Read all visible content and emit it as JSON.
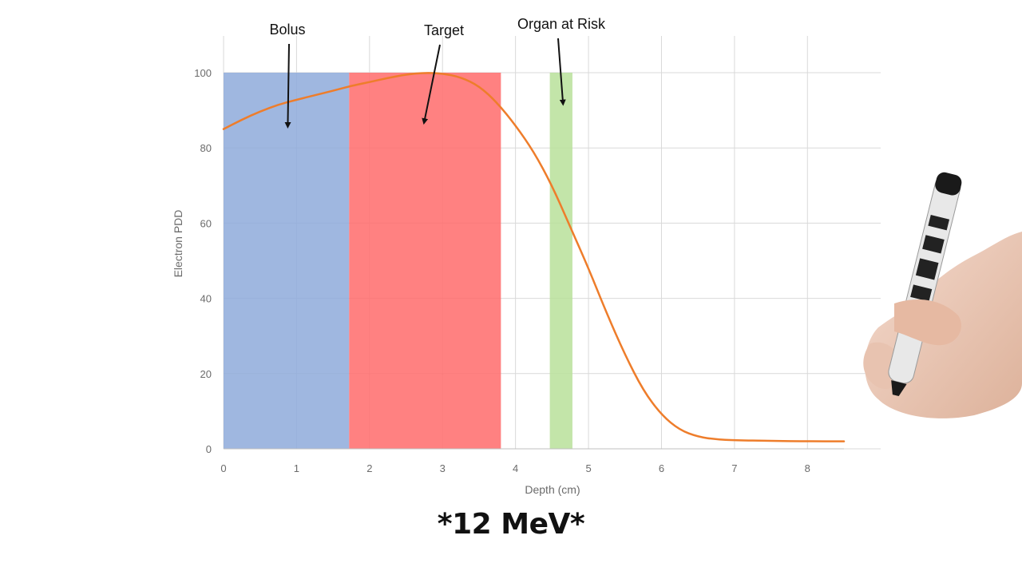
{
  "caption": "*12 MeV*",
  "chart_data": {
    "type": "line",
    "title": "",
    "xlabel": "Depth (cm)",
    "ylabel": "Electron PDD",
    "xlim": [
      0,
      8.5
    ],
    "ylim": [
      0,
      100
    ],
    "x_ticks": [
      "0",
      "1",
      "2",
      "3",
      "4",
      "5",
      "6",
      "7",
      "8"
    ],
    "y_ticks": [
      "0",
      "20",
      "40",
      "60",
      "80",
      "100"
    ],
    "grid": true,
    "series": [
      {
        "name": "",
        "color": "#ee7d2b",
        "x": [
          0,
          0.25,
          0.5,
          0.75,
          1.0,
          1.25,
          1.5,
          1.75,
          2.0,
          2.25,
          2.5,
          2.75,
          3.0,
          3.25,
          3.5,
          3.75,
          4.0,
          4.25,
          4.5,
          4.75,
          5.0,
          5.25,
          5.5,
          5.75,
          6.0,
          6.25,
          6.5,
          6.75,
          7.0,
          7.5,
          8.0,
          8.5
        ],
        "y": [
          85,
          87.5,
          89.7,
          91.5,
          92.8,
          94,
          95.2,
          96.5,
          97.5,
          98.6,
          99.5,
          100,
          99.8,
          98.8,
          96.5,
          92,
          86,
          79,
          70,
          59,
          48,
          36,
          25,
          15.5,
          9,
          5,
          3.2,
          2.5,
          2.3,
          2.1,
          2.0,
          2.0
        ]
      }
    ],
    "regions": [
      {
        "name": "Bolus",
        "x": [
          0,
          1.72
        ],
        "y": [
          0,
          100
        ],
        "color": "#8eaadb"
      },
      {
        "name": "Target",
        "x": [
          1.72,
          3.8
        ],
        "y": [
          0,
          100
        ],
        "color": "#ff6b6b"
      },
      {
        "name": "Organ at Risk",
        "x": [
          4.47,
          4.78
        ],
        "y": [
          0,
          100
        ],
        "color": "#b9e09a"
      }
    ],
    "annotations": [
      {
        "text": "Bolus",
        "arrow_to": [
          0.88,
          86
        ]
      },
      {
        "text": "Target",
        "arrow_to": [
          2.75,
          87
        ]
      },
      {
        "text": "Organ at Risk",
        "arrow_to": [
          4.65,
          92
        ]
      }
    ]
  }
}
